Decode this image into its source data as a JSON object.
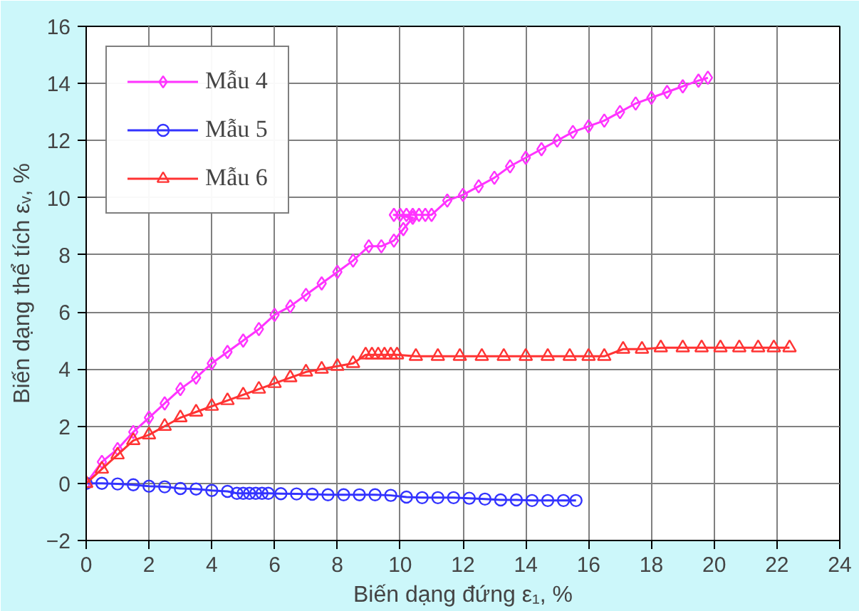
{
  "chart_data": {
    "type": "line",
    "xlabel": "Biến dạng đứng ε₁, %",
    "ylabel": "Biến dạng thể tích εᵥ, %",
    "xlim": [
      0,
      24
    ],
    "xticks": [
      0,
      2,
      4,
      6,
      8,
      10,
      12,
      14,
      16,
      18,
      20,
      22,
      24
    ],
    "ylim": [
      -2,
      16
    ],
    "yticks": [
      -2,
      0,
      2,
      4,
      6,
      8,
      10,
      12,
      14,
      16
    ],
    "grid": true,
    "legend": "top left",
    "line_style": "solid",
    "series": [
      {
        "name": "Mẫu 4",
        "color": "#ff33ff",
        "marker": "diamond",
        "x": [
          0,
          0.5,
          1,
          1.5,
          2,
          2.5,
          3,
          3.5,
          4,
          4.5,
          5,
          5.5,
          6,
          6.5,
          7,
          7.5,
          8,
          8.5,
          9,
          9.4,
          9.8,
          10.1,
          10.4,
          9.8,
          10,
          10.2,
          10.4,
          10.6,
          10.8,
          11,
          11.5,
          12,
          12.5,
          13,
          13.5,
          14,
          14.5,
          15,
          15.5,
          16,
          16.5,
          17,
          17.5,
          18,
          18.5,
          19,
          19.5,
          19.8
        ],
        "values": [
          0,
          0.75,
          1.2,
          1.8,
          2.3,
          2.8,
          3.3,
          3.7,
          4.2,
          4.6,
          5.0,
          5.4,
          5.9,
          6.2,
          6.6,
          7.0,
          7.4,
          7.8,
          8.3,
          8.3,
          8.5,
          8.9,
          9.3,
          9.4,
          9.4,
          9.4,
          9.4,
          9.4,
          9.4,
          9.4,
          9.9,
          10.1,
          10.4,
          10.7,
          11.1,
          11.4,
          11.7,
          12.0,
          12.3,
          12.5,
          12.7,
          13.0,
          13.3,
          13.5,
          13.7,
          13.9,
          14.1,
          14.2
        ]
      },
      {
        "name": "Mẫu 5",
        "color": "#3333ff",
        "marker": "circle",
        "x": [
          0,
          0.5,
          1,
          1.5,
          2,
          2.5,
          3,
          3.5,
          4,
          4.5,
          4.8,
          5,
          5.2,
          5.4,
          5.6,
          5.8,
          6.2,
          6.7,
          7.2,
          7.7,
          8.2,
          8.7,
          9.2,
          9.7,
          10.2,
          10.7,
          11.2,
          11.7,
          12.2,
          12.7,
          13.2,
          13.7,
          14.2,
          14.7,
          15.2,
          15.6
        ],
        "values": [
          0,
          0,
          -0.02,
          -0.05,
          -0.1,
          -0.12,
          -0.18,
          -0.2,
          -0.25,
          -0.28,
          -0.35,
          -0.35,
          -0.35,
          -0.35,
          -0.35,
          -0.35,
          -0.36,
          -0.37,
          -0.38,
          -0.4,
          -0.4,
          -0.4,
          -0.4,
          -0.42,
          -0.48,
          -0.5,
          -0.5,
          -0.5,
          -0.52,
          -0.55,
          -0.58,
          -0.58,
          -0.6,
          -0.6,
          -0.6,
          -0.6
        ]
      },
      {
        "name": "Mẫu 6",
        "color": "#ff3333",
        "marker": "triangle",
        "x": [
          0,
          0.5,
          1,
          1.5,
          2,
          2.5,
          3,
          3.5,
          4,
          4.5,
          5,
          5.5,
          6,
          6.5,
          7,
          7.5,
          8,
          8.5,
          8.9,
          9.1,
          9.3,
          9.5,
          9.7,
          9.9,
          10.5,
          11.2,
          11.9,
          12.6,
          13.3,
          14,
          14.7,
          15.4,
          16,
          16.5,
          17.1,
          17.7,
          18.3,
          19,
          19.6,
          20.2,
          20.8,
          21.4,
          21.9,
          22.4
        ],
        "values": [
          0,
          0.5,
          1.0,
          1.5,
          1.7,
          2.0,
          2.3,
          2.5,
          2.7,
          2.9,
          3.1,
          3.3,
          3.5,
          3.7,
          3.9,
          4.0,
          4.1,
          4.2,
          4.5,
          4.5,
          4.5,
          4.5,
          4.5,
          4.5,
          4.45,
          4.45,
          4.45,
          4.45,
          4.45,
          4.45,
          4.45,
          4.45,
          4.45,
          4.45,
          4.7,
          4.7,
          4.75,
          4.75,
          4.75,
          4.75,
          4.75,
          4.75,
          4.75,
          4.75
        ]
      }
    ]
  }
}
